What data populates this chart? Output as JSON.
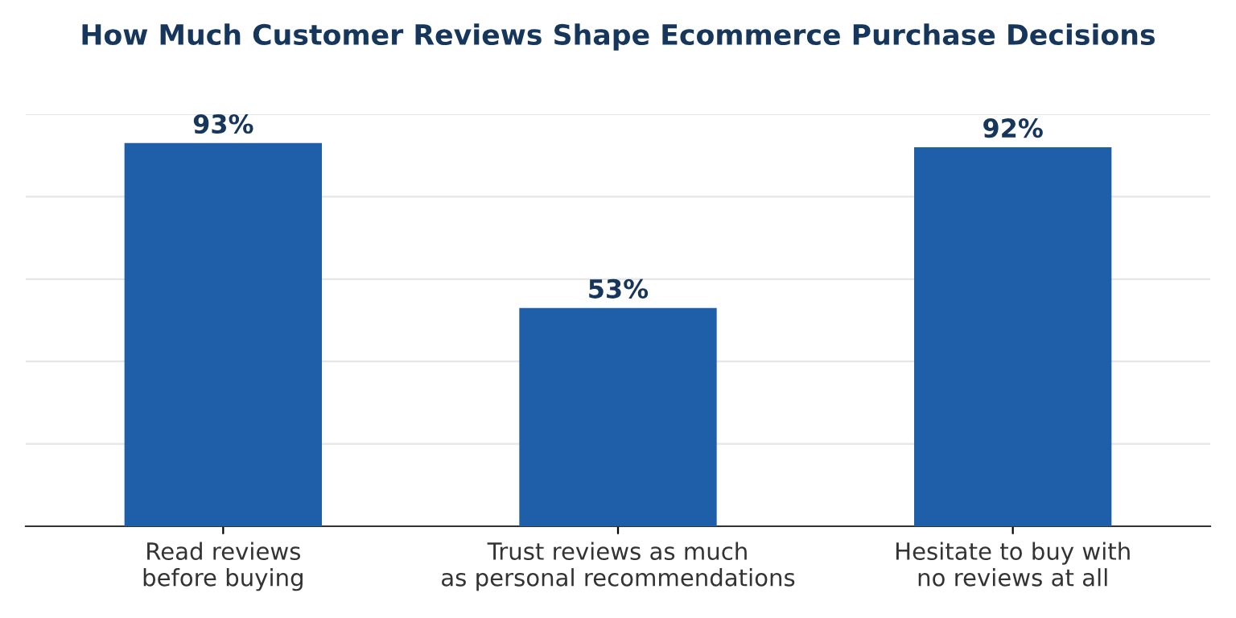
{
  "chart_data": {
    "type": "bar",
    "title": "How Much Customer Reviews Shape Ecommerce Purchase Decisions",
    "categories": [
      "Read reviews\nbefore buying",
      "Trust reviews as much\nas personal recommendations",
      "Hesitate to buy with\nno reviews at all"
    ],
    "values": [
      93,
      53,
      92
    ],
    "value_labels": [
      "93%",
      "53%",
      "92%"
    ],
    "color": "#1f5faa",
    "ylim": [
      0,
      100
    ],
    "yticks": [
      {
        "value": 0,
        "label": null
      },
      {
        "value": 20,
        "label": null
      },
      {
        "value": 40,
        "label": null
      },
      {
        "value": 60,
        "label": null
      },
      {
        "value": 80,
        "label": null
      },
      {
        "value": 100,
        "label": null
      }
    ],
    "tick_labels": "x",
    "grid": "y"
  }
}
